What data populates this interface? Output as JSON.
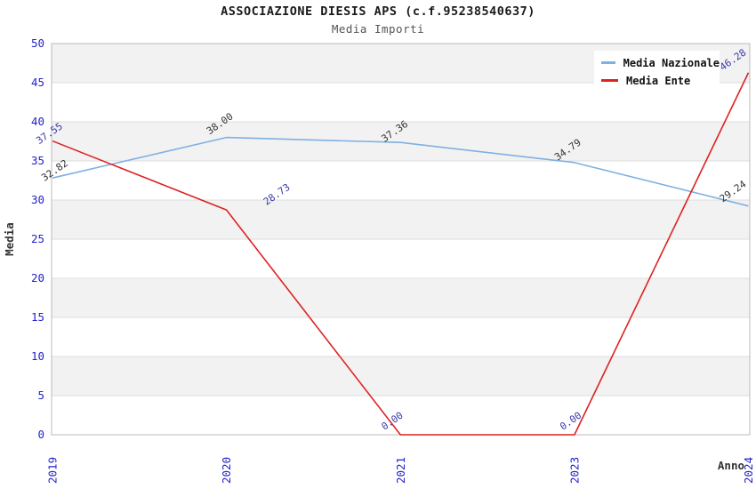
{
  "header": {
    "title": "ASSOCIAZIONE DIESIS APS (c.f.95238540637)",
    "subtitle": "Media Importi"
  },
  "legend": {
    "items": [
      {
        "label": "Media Nazionale",
        "color": "#7FB0E2"
      },
      {
        "label": "Media Ente",
        "color": "#DD2222"
      }
    ]
  },
  "axes": {
    "xlabel": "Anno",
    "ylabel": "Media",
    "tick_color": "#2222CC"
  },
  "chart_data": {
    "type": "line",
    "title": "ASSOCIAZIONE DIESIS APS (c.f.95238540637)",
    "subtitle": "Media Importi",
    "xlabel": "Anno",
    "ylabel": "Media",
    "categories": [
      "2019",
      "2020",
      "2021",
      "2023",
      "2024"
    ],
    "series": [
      {
        "name": "Media Nazionale",
        "color": "#7FB0E2",
        "label_color": "#333333",
        "values": [
          32.82,
          38.0,
          37.36,
          34.79,
          29.24
        ]
      },
      {
        "name": "Media Ente",
        "color": "#DD2222",
        "label_color": "#3838AA",
        "values": [
          37.55,
          28.73,
          0.0,
          0.0,
          46.28
        ]
      }
    ],
    "ylim": [
      0,
      50
    ],
    "ytick_step": 5,
    "grid": "alternating-horizontal-bands",
    "band_color": "#F2F2F2",
    "gridline_color": "#DEDEDE",
    "frame_color": "#BBBBBB",
    "axis_tick_label_color": "#2222CC",
    "legend_position": "top-right"
  }
}
